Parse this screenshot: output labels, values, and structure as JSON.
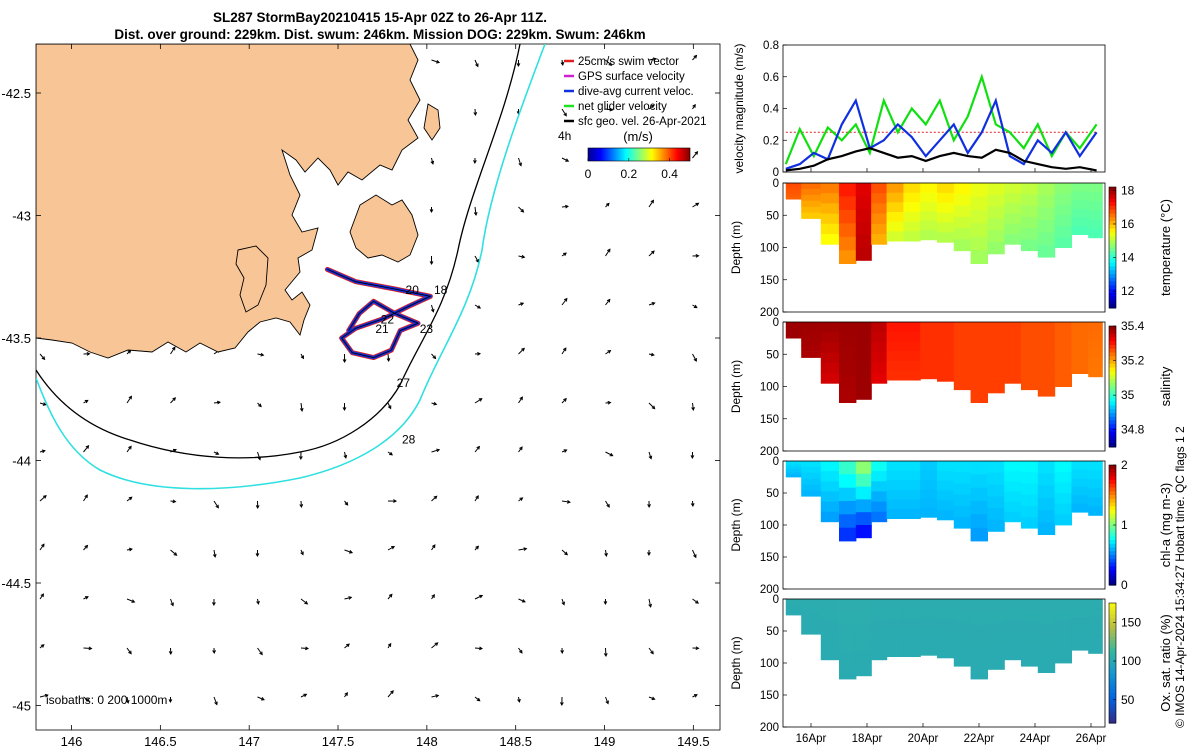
{
  "title": {
    "line1": "SL287 StormBay20210415 15-Apr 02Z to 26-Apr 11Z.",
    "line2": "Dist. over ground: 229km. Dist. swum: 246km. Mission DOG: 229km. Swum: 246km"
  },
  "chart_data": [
    {
      "type": "scatter",
      "subtype": "map",
      "xlim": [
        145.8,
        149.65
      ],
      "ylim": [
        -45.1,
        -42.3
      ],
      "xticks": [
        146,
        146.5,
        147,
        147.5,
        148,
        148.5,
        149,
        149.5
      ],
      "yticks": [
        -42.5,
        -43,
        -43.5,
        -44,
        -44.5,
        -45
      ],
      "xtick_labels": [
        "146",
        "146.5",
        "147",
        "147.5",
        "148",
        "148.5",
        "149",
        "149.5"
      ],
      "ytick_labels": [
        "-42.5",
        "-43",
        "-43.5",
        "-44",
        "-44.5",
        "-45"
      ],
      "isobaths_label": "isobaths: 0   200  1000m",
      "legend": [
        "25cm/s swim vector",
        "GPS surface velocity",
        "dive-avg current veloc.",
        "net glider velocity",
        "sfc geo. vel. 26-Apr-2021"
      ],
      "legend_colors": [
        "#e02020",
        "#d020d0",
        "#1030e0",
        "#20e020",
        "#000000"
      ],
      "colorbar": {
        "label": "(m/s)",
        "tick_labels": [
          "0",
          "0.2",
          "0.4"
        ],
        "range": [
          0,
          0.5
        ],
        "side_label": "4h"
      },
      "day_labels": [
        {
          "text": "20",
          "lon": 147.88,
          "lat": -43.32
        },
        {
          "text": "18",
          "lon": 148.04,
          "lat": -43.32
        },
        {
          "text": "22",
          "lon": 147.74,
          "lat": -43.44
        },
        {
          "text": "21",
          "lon": 147.71,
          "lat": -43.48
        },
        {
          "text": "23",
          "lon": 147.96,
          "lat": -43.48
        },
        {
          "text": "27",
          "lon": 147.83,
          "lat": -43.7
        },
        {
          "text": "28",
          "lon": 147.86,
          "lat": -43.93
        }
      ],
      "track": [
        [
          147.44,
          -43.22
        ],
        [
          147.6,
          -43.27
        ],
        [
          147.82,
          -43.3
        ],
        [
          148.02,
          -43.33
        ],
        [
          147.9,
          -43.37
        ],
        [
          147.76,
          -43.42
        ],
        [
          147.6,
          -43.46
        ],
        [
          147.52,
          -43.5
        ],
        [
          147.58,
          -43.56
        ],
        [
          147.7,
          -43.58
        ],
        [
          147.8,
          -43.55
        ],
        [
          147.85,
          -43.47
        ],
        [
          147.95,
          -43.44
        ],
        [
          147.82,
          -43.4
        ],
        [
          147.7,
          -43.35
        ],
        [
          147.62,
          -43.4
        ],
        [
          147.56,
          -43.47
        ]
      ]
    },
    {
      "type": "line",
      "ylabel": "velocity magnitude (m/s)",
      "ylim": [
        0,
        0.8
      ],
      "yticks": [
        0,
        0.2,
        0.4,
        0.6,
        0.8
      ],
      "x_days": [
        15.1,
        15.6,
        16.1,
        16.6,
        17.1,
        17.6,
        18.1,
        18.6,
        19.1,
        19.6,
        20.1,
        20.6,
        21.1,
        21.6,
        22.1,
        22.6,
        23.1,
        23.6,
        24.1,
        24.6,
        25.1,
        25.6,
        26.2
      ],
      "series": [
        {
          "name": "net glider velocity",
          "color": "#10e010",
          "values": [
            0.05,
            0.27,
            0.1,
            0.28,
            0.2,
            0.3,
            0.12,
            0.45,
            0.25,
            0.4,
            0.3,
            0.45,
            0.2,
            0.35,
            0.6,
            0.3,
            0.25,
            0.15,
            0.3,
            0.1,
            0.25,
            0.15,
            0.3
          ]
        },
        {
          "name": "dive-avg current veloc.",
          "color": "#1030e0",
          "values": [
            0.02,
            0.05,
            0.12,
            0.08,
            0.3,
            0.45,
            0.15,
            0.2,
            0.3,
            0.22,
            0.1,
            0.2,
            0.3,
            0.12,
            0.25,
            0.45,
            0.1,
            0.05,
            0.2,
            0.12,
            0.25,
            0.1,
            0.25
          ]
        },
        {
          "name": "sfc geo. vel.",
          "color": "#000000",
          "values": [
            0.01,
            0.02,
            0.04,
            0.08,
            0.1,
            0.13,
            0.15,
            0.12,
            0.09,
            0.1,
            0.07,
            0.1,
            0.12,
            0.1,
            0.09,
            0.14,
            0.12,
            0.07,
            0.05,
            0.03,
            0.02,
            0.03,
            0.01
          ]
        },
        {
          "name": "25cm/s swim vector",
          "color": "#e02020",
          "values": [
            0.25,
            0.25,
            0.25,
            0.25,
            0.25,
            0.25,
            0.25,
            0.25,
            0.25,
            0.25,
            0.25,
            0.25,
            0.25,
            0.25,
            0.25,
            0.25,
            0.25,
            0.25,
            0.25,
            0.25,
            0.25,
            0.25,
            0.25
          ]
        }
      ]
    },
    {
      "type": "heatmap",
      "ylabel": "Depth (m)",
      "cbar_label": "temperature (°C)",
      "ylim": [
        200,
        0
      ],
      "yticks": [
        0,
        50,
        100,
        150,
        200
      ],
      "clim": [
        11,
        18.2
      ],
      "cbar_ticks": [
        12,
        14,
        16,
        18
      ],
      "xlim": [
        15,
        26.5
      ],
      "x_days": [
        15.3,
        16,
        16.7,
        17.3,
        17.9,
        18.4,
        19,
        19.6,
        20.2,
        20.8,
        21.4,
        22,
        22.6,
        23.2,
        23.8,
        24.4,
        25,
        25.6,
        26.2
      ],
      "surface_values": [
        16.8,
        16.6,
        16.5,
        17.2,
        17.5,
        16.8,
        16.3,
        15.8,
        15.6,
        15.8,
        15.6,
        15.4,
        15.3,
        15.2,
        15.1,
        14.9,
        14.7,
        14.6,
        14.6
      ],
      "bottom_values": [
        16.6,
        15.8,
        15.4,
        16.2,
        17.8,
        16.0,
        15.1,
        15.0,
        14.9,
        14.9,
        14.8,
        14.8,
        14.7,
        14.6,
        14.5,
        14.4,
        14.3,
        14.2,
        14.2
      ],
      "max_depth": [
        25,
        55,
        95,
        125,
        120,
        95,
        90,
        90,
        88,
        92,
        105,
        125,
        110,
        95,
        105,
        115,
        100,
        80,
        85
      ]
    },
    {
      "type": "heatmap",
      "ylabel": "Depth (m)",
      "cbar_label": "salinity",
      "ylim": [
        200,
        0
      ],
      "yticks": [
        0,
        50,
        100,
        150,
        200
      ],
      "clim": [
        34.7,
        35.4
      ],
      "cbar_ticks": [
        34.8,
        35,
        35.2,
        35.4
      ],
      "xlim": [
        15,
        26.5
      ],
      "x_days": [
        15.3,
        16,
        16.7,
        17.3,
        17.9,
        18.4,
        19,
        19.6,
        20.2,
        20.8,
        21.4,
        22,
        22.6,
        23.2,
        23.8,
        24.4,
        25,
        25.6,
        26.2
      ],
      "surface_values": [
        35.38,
        35.38,
        35.38,
        35.38,
        35.38,
        35.36,
        35.3,
        35.3,
        35.28,
        35.28,
        35.27,
        35.27,
        35.27,
        35.27,
        35.26,
        35.26,
        35.25,
        35.24,
        35.24
      ],
      "bottom_values": [
        35.38,
        35.37,
        35.34,
        35.37,
        35.38,
        35.33,
        35.28,
        35.28,
        35.28,
        35.28,
        35.27,
        35.27,
        35.27,
        35.27,
        35.26,
        35.26,
        35.25,
        35.24,
        35.23
      ],
      "max_depth": [
        25,
        55,
        95,
        125,
        120,
        95,
        90,
        90,
        88,
        92,
        105,
        125,
        110,
        95,
        105,
        115,
        100,
        80,
        85
      ]
    },
    {
      "type": "heatmap",
      "ylabel": "Depth (m)",
      "cbar_label": "chl-a (mg m-3)",
      "ylim": [
        200,
        0
      ],
      "yticks": [
        0,
        50,
        100,
        150,
        200
      ],
      "clim": [
        0,
        2
      ],
      "cbar_ticks": [
        0,
        1,
        2
      ],
      "xlim": [
        15,
        26.5
      ],
      "x_days": [
        15.3,
        16,
        16.7,
        17.3,
        17.9,
        18.4,
        19,
        19.6,
        20.2,
        20.8,
        21.4,
        22,
        22.6,
        23.2,
        23.8,
        24.4,
        25,
        25.6,
        26.2
      ],
      "surface_values": [
        0.7,
        0.7,
        0.75,
        0.9,
        1.1,
        0.8,
        0.7,
        0.7,
        0.65,
        0.7,
        0.7,
        0.7,
        0.7,
        0.75,
        0.75,
        0.7,
        0.75,
        0.7,
        0.7
      ],
      "bottom_values": [
        0.6,
        0.6,
        0.55,
        0.3,
        0.2,
        0.45,
        0.6,
        0.6,
        0.6,
        0.6,
        0.6,
        0.55,
        0.6,
        0.65,
        0.65,
        0.6,
        0.65,
        0.6,
        0.6
      ],
      "max_depth": [
        25,
        55,
        95,
        125,
        120,
        95,
        90,
        90,
        88,
        92,
        105,
        125,
        110,
        95,
        105,
        115,
        100,
        80,
        85
      ]
    },
    {
      "type": "heatmap",
      "ylabel": "Depth (m)",
      "cbar_label": "Ox. sat. ratio (%)",
      "ylim": [
        200,
        0
      ],
      "yticks": [
        0,
        50,
        100,
        150,
        200
      ],
      "clim": [
        20,
        175
      ],
      "cbar_ticks": [
        50,
        100,
        150
      ],
      "xlim": [
        15,
        26.5
      ],
      "x_days": [
        15.3,
        16,
        16.7,
        17.3,
        17.9,
        18.4,
        19,
        19.6,
        20.2,
        20.8,
        21.4,
        22,
        22.6,
        23.2,
        23.8,
        24.4,
        25,
        25.6,
        26.2
      ],
      "surface_values": [
        103,
        103,
        103,
        104,
        104,
        103,
        103,
        103,
        103,
        103,
        103,
        103,
        103,
        103,
        103,
        103,
        103,
        103,
        103
      ],
      "bottom_values": [
        101,
        101,
        101,
        101,
        101,
        101,
        101,
        101,
        101,
        101,
        101,
        101,
        101,
        101,
        101,
        101,
        101,
        101,
        101
      ],
      "max_depth": [
        25,
        55,
        95,
        125,
        120,
        95,
        90,
        90,
        88,
        92,
        105,
        125,
        110,
        95,
        105,
        115,
        100,
        80,
        85
      ]
    }
  ],
  "time_axis": {
    "ticks": [
      16,
      18,
      20,
      22,
      24,
      26
    ],
    "labels": [
      "16Apr",
      "18Apr",
      "20Apr",
      "22Apr",
      "24Apr",
      "26Apr"
    ]
  },
  "credit": "© IMOS 14-Apr-2024 15:34:27 Hobart time. QC flags 1  2",
  "colors": {
    "land": "#f8c696",
    "track_red": "#e02020",
    "track_blue": "#1030e0",
    "isobath_cyan": "#30e0e0"
  }
}
